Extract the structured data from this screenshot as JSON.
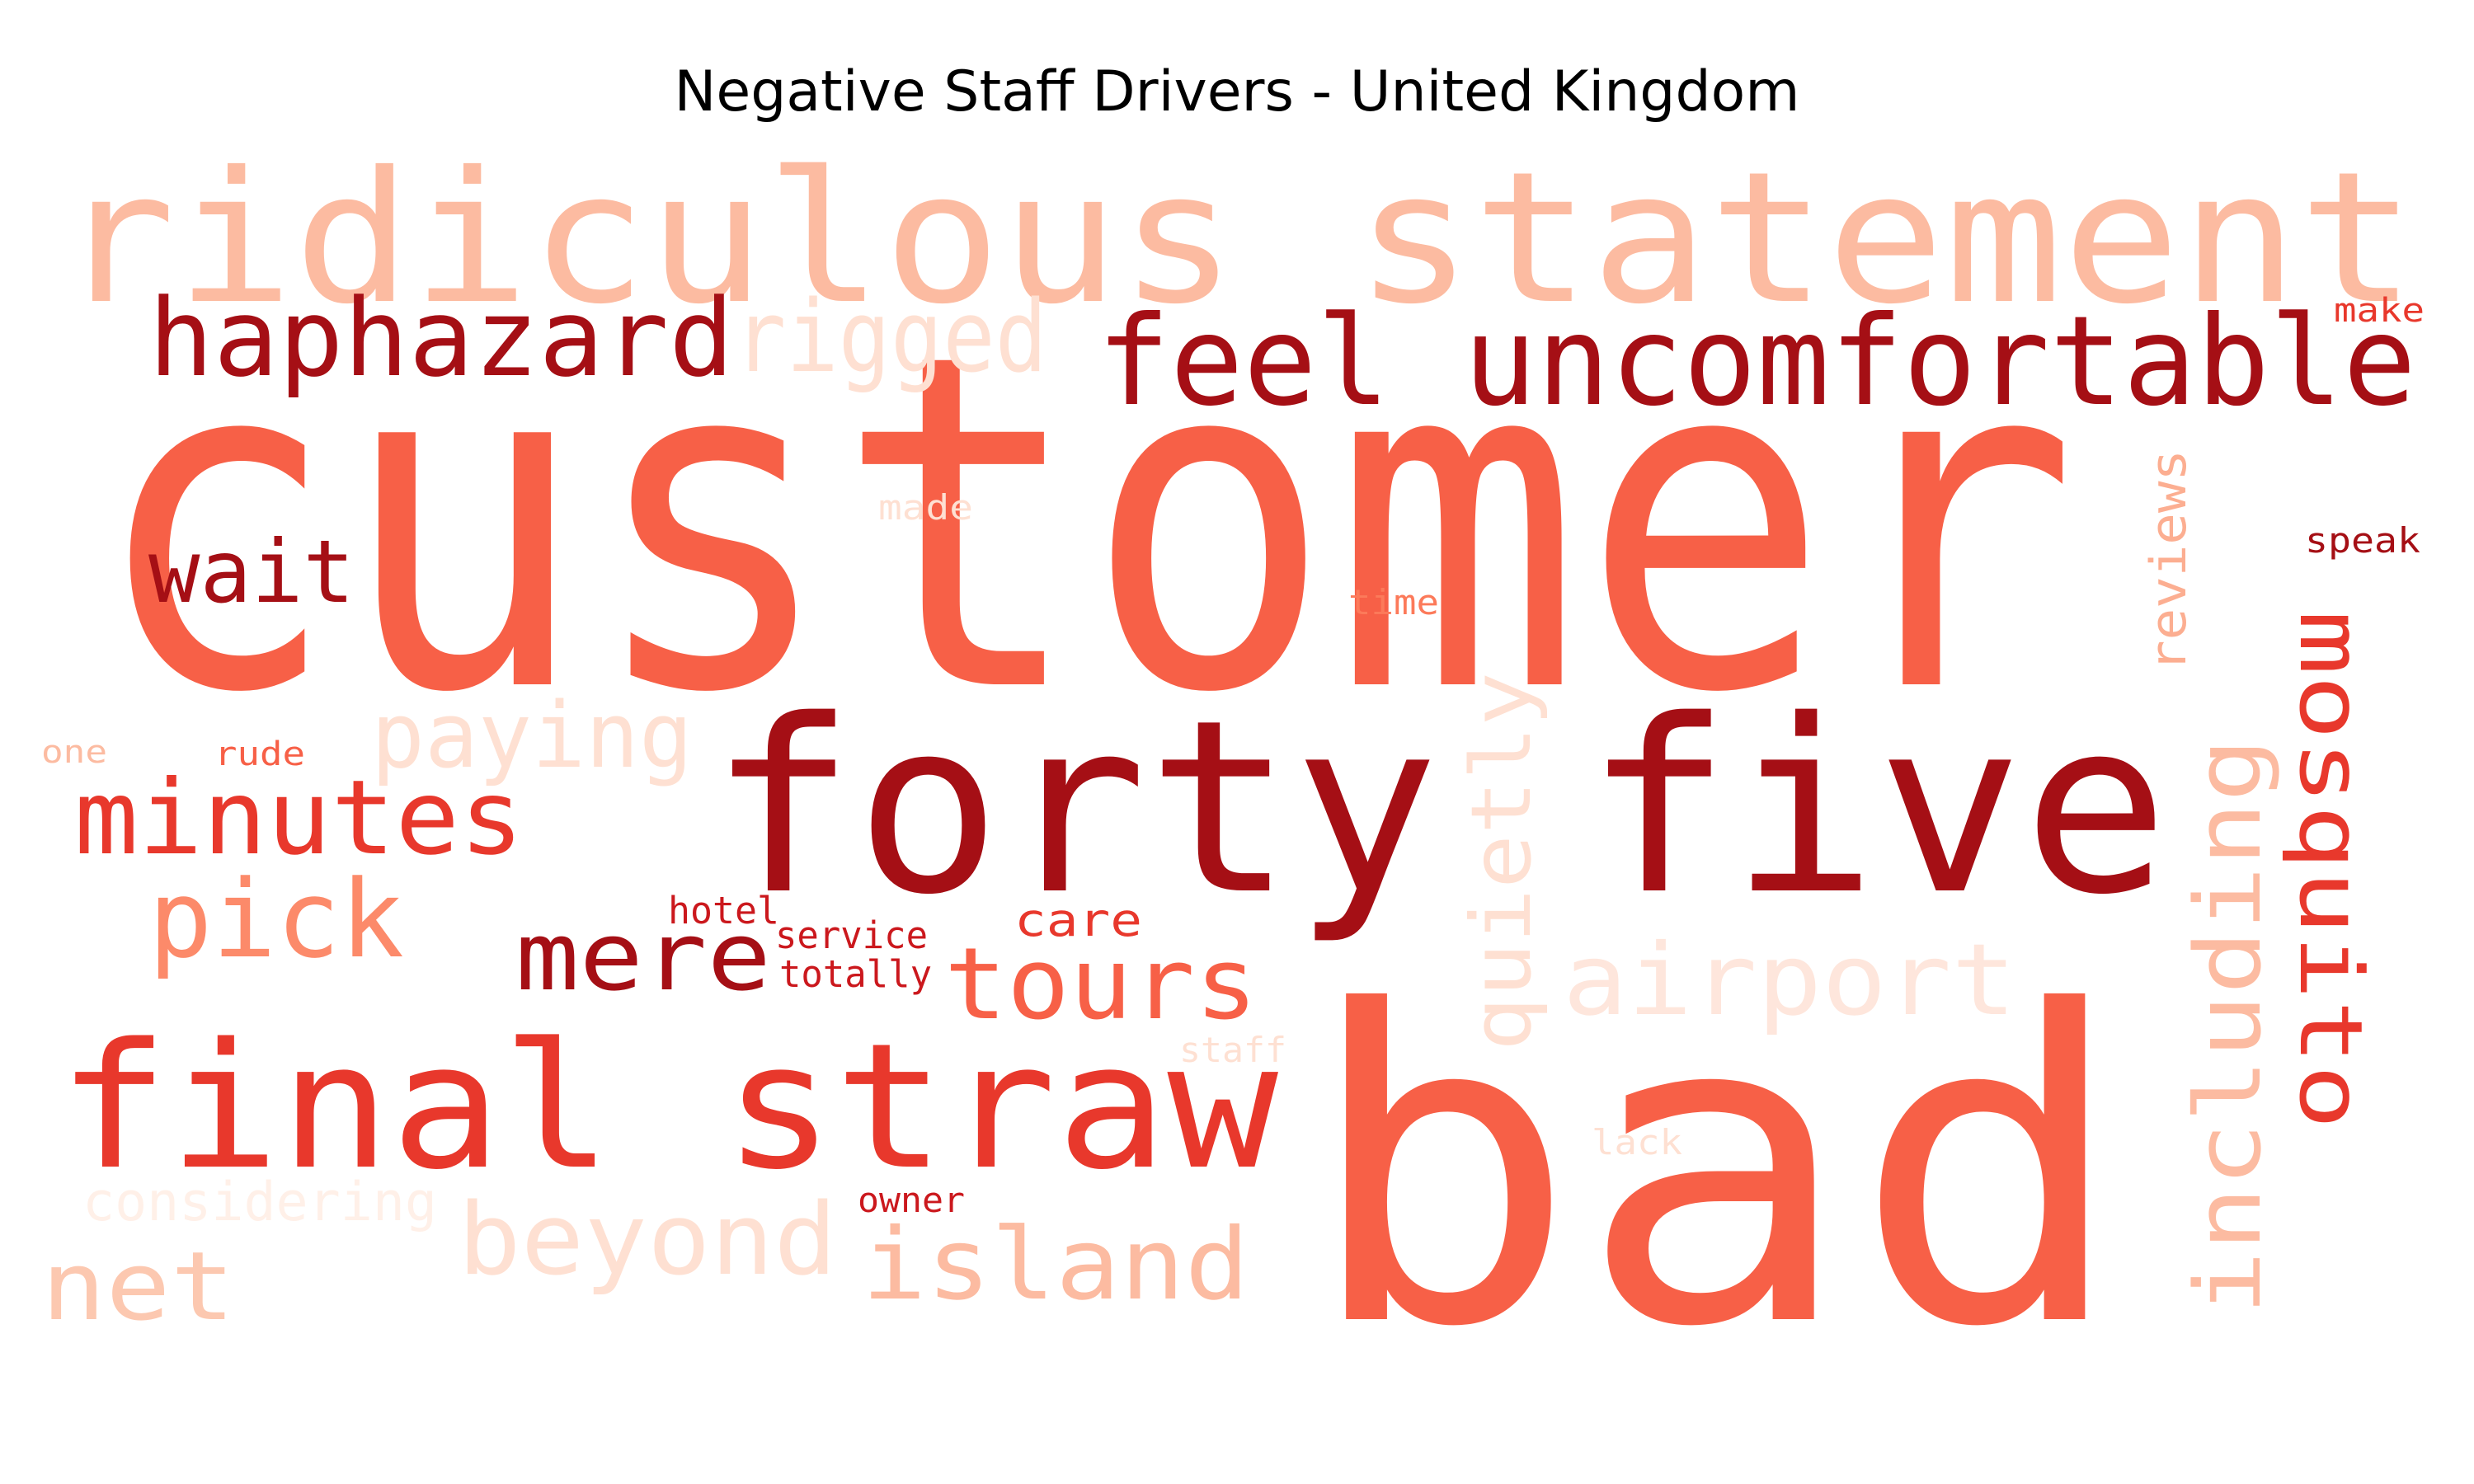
{
  "title": "Negative Staff Drivers - United Kingdom",
  "words": [
    {
      "text": "customer",
      "color": "#f76047"
    },
    {
      "text": "bad",
      "color": "#f76047"
    },
    {
      "text": "ridiculous statement",
      "color": "#fcbba1"
    },
    {
      "text": "forty five",
      "color": "#a50f15"
    },
    {
      "text": "feel uncomfortable",
      "color": "#a50f15"
    },
    {
      "text": "final straw",
      "color": "#e8382c"
    },
    {
      "text": "haphazard",
      "color": "#a50f15"
    },
    {
      "text": "rigged",
      "color": "#fee0d2"
    },
    {
      "text": "wait",
      "color": "#a50f15"
    },
    {
      "text": "minutes",
      "color": "#e8382c"
    },
    {
      "text": "paying",
      "color": "#fee0d2"
    },
    {
      "text": "pick",
      "color": "#fc8a6a"
    },
    {
      "text": "mere",
      "color": "#a50f15"
    },
    {
      "text": "tours",
      "color": "#f76047"
    },
    {
      "text": "airport",
      "color": "#fee6dc"
    },
    {
      "text": "quietly",
      "color": "#fee0d2"
    },
    {
      "text": "including",
      "color": "#fcbba1"
    },
    {
      "text": "mosquito",
      "color": "#e8382c"
    },
    {
      "text": "reviews",
      "color": "#fcae91"
    },
    {
      "text": "beyond",
      "color": "#fee0d2"
    },
    {
      "text": "island",
      "color": "#fcbba1"
    },
    {
      "text": "net",
      "color": "#fcc8b0"
    },
    {
      "text": "considering",
      "color": "#fff0e8"
    },
    {
      "text": "care",
      "color": "#e8382c"
    },
    {
      "text": "hotel",
      "color": "#cb181d"
    },
    {
      "text": "service",
      "color": "#cb181d"
    },
    {
      "text": "totally",
      "color": "#cb181d"
    },
    {
      "text": "staff",
      "color": "#fee0d2"
    },
    {
      "text": "owner",
      "color": "#cb181d"
    },
    {
      "text": "lack",
      "color": "#fee0d2"
    },
    {
      "text": "time",
      "color": "#fc7a5a"
    },
    {
      "text": "made",
      "color": "#fee0d2"
    },
    {
      "text": "speak",
      "color": "#a50f15"
    },
    {
      "text": "make",
      "color": "#e8382c"
    },
    {
      "text": "one",
      "color": "#fcbba1"
    },
    {
      "text": "rude",
      "color": "#f76047"
    }
  ]
}
